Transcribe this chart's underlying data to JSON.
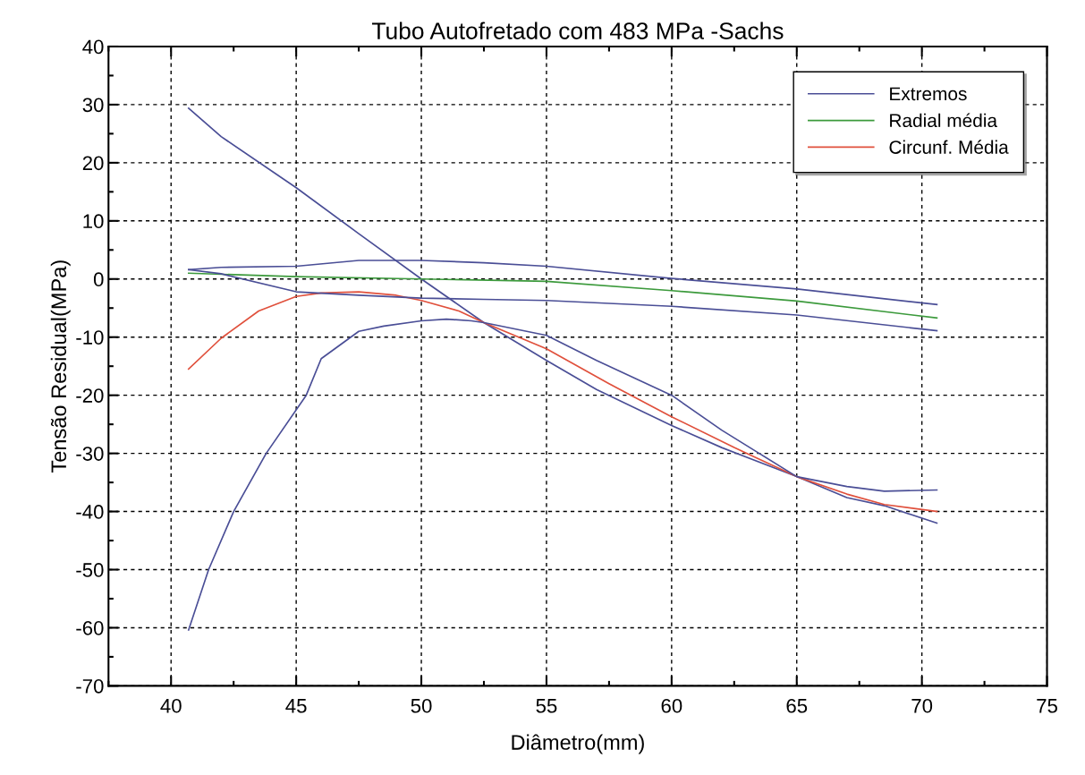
{
  "chart_data": {
    "type": "line",
    "title": "Tubo Autofretado com 483 MPa -Sachs",
    "xlabel": "Diâmetro(mm)",
    "ylabel": "Tensão Residual(MPa)",
    "xlim": [
      37.5,
      75
    ],
    "xticks": [
      40,
      45,
      50,
      55,
      60,
      65,
      70,
      75
    ],
    "ylim": [
      -70,
      40
    ],
    "yticks": [
      -70,
      -60,
      -50,
      -40,
      -30,
      -20,
      -10,
      0,
      10,
      20,
      30,
      40
    ],
    "grid": true,
    "legend": "top right",
    "series": [
      {
        "name": "Extremos",
        "color": "#4a4e96",
        "x": [
          40.7,
          42,
          45,
          47.5,
          50,
          52.5,
          55,
          57,
          60,
          62,
          65,
          67,
          68.5,
          70.6
        ],
        "values": [
          29.4,
          24.5,
          15.7,
          7.8,
          0,
          -7.5,
          -14,
          -19,
          -25.2,
          -29,
          -34,
          -37.6,
          -39,
          -42
        ]
      },
      {
        "name": "Radial média",
        "color": "#3c9a3c",
        "x": [
          40.7,
          45,
          50,
          55,
          60,
          65,
          70.6
        ],
        "values": [
          1.0,
          0.4,
          0,
          -0.4,
          -2.0,
          -3.8,
          -6.7
        ]
      },
      {
        "name": "Circunf. Média",
        "color": "#e0503c",
        "x": [
          40.7,
          42,
          43.5,
          45,
          46,
          47.5,
          49,
          50,
          51.5,
          52.5,
          55,
          57.5,
          60,
          62.5,
          65,
          67,
          68.5,
          70.6
        ],
        "values": [
          -15.5,
          -10.2,
          -5.5,
          -3.0,
          -2.4,
          -2.2,
          -2.8,
          -3.7,
          -5.5,
          -7.5,
          -12,
          -18,
          -23.7,
          -29,
          -34,
          -37,
          -38.8,
          -40
        ]
      },
      {
        "color": "#4a4e96",
        "x": [
          40.7,
          41.5,
          42.5,
          43.8,
          45.4,
          46,
          47.5,
          48.5,
          50,
          51,
          52,
          52.5,
          55,
          57,
          60,
          62,
          63.5,
          65,
          67,
          68.5,
          70.6
        ],
        "values": [
          -60.4,
          -50,
          -40,
          -30,
          -20,
          -13.7,
          -9,
          -8.1,
          -7.2,
          -6.9,
          -7.2,
          -7.5,
          -9.7,
          -14,
          -20,
          -26,
          -30,
          -34,
          -35.7,
          -36.5,
          -36.3
        ]
      },
      {
        "color": "#4a4e96",
        "x": [
          40.7,
          42,
          45,
          47.5,
          50,
          52.5,
          55,
          60,
          65,
          70.6
        ],
        "values": [
          1.6,
          2.0,
          2.2,
          3.2,
          3.2,
          2.8,
          2.2,
          0.1,
          -1.7,
          -4.4
        ]
      },
      {
        "color": "#4a4e96",
        "x": [
          40.7,
          42,
          45,
          47.5,
          50,
          52.5,
          55,
          60,
          65,
          70.6
        ],
        "values": [
          1.6,
          0.9,
          -2.2,
          -2.8,
          -3.3,
          -3.5,
          -3.7,
          -4.7,
          -6.2,
          -8.9
        ]
      }
    ]
  }
}
